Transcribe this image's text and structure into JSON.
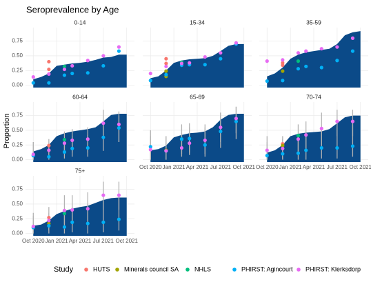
{
  "chart_data": {
    "type": "area",
    "title": "Seroprevalence by Age",
    "y_label": "Proportion",
    "legend_title": "Study",
    "area_color": "#0b4a88",
    "grid": true,
    "xlim": [
      "2020-09",
      "2021-11"
    ],
    "xticks": [
      {
        "value": "2020-10",
        "label": "Oct 2020"
      },
      {
        "value": "2021-01",
        "label": "Jan 2021"
      },
      {
        "value": "2021-04",
        "label": "Apr 2021"
      },
      {
        "value": "2021-07",
        "label": "Jul 2021"
      },
      {
        "value": "2021-10",
        "label": "Oct 2021"
      }
    ],
    "ylim": [
      -0.04,
      0.98
    ],
    "yticks": [
      {
        "value": 0,
        "label": "0.00"
      },
      {
        "value": 0.25,
        "label": "0.25"
      },
      {
        "value": 0.5,
        "label": "0.50"
      },
      {
        "value": 0.75,
        "label": "0.75"
      }
    ],
    "series": [
      {
        "name": "HUTS",
        "color": "#f8766d"
      },
      {
        "name": "Minerals council SA",
        "color": "#a3a500"
      },
      {
        "name": "NHLS",
        "color": "#00bf7d"
      },
      {
        "name": "PHIRST: Agincourt",
        "color": "#00b0f6"
      },
      {
        "name": "PHIRST: Klerksdorp",
        "color": "#e76bf3"
      }
    ],
    "panels": [
      {
        "title": "0-14",
        "area": {
          "x": [
            "2020-10",
            "2020-11",
            "2020-12",
            "2021-01",
            "2021-02",
            "2021-03",
            "2021-04",
            "2021-05",
            "2021-06",
            "2021-07",
            "2021-08",
            "2021-09",
            "2021-10"
          ],
          "values": [
            0.1,
            0.14,
            0.2,
            0.33,
            0.35,
            0.37,
            0.38,
            0.4,
            0.43,
            0.47,
            0.48,
            0.52,
            0.52
          ]
        },
        "points": [
          {
            "x": [
              "2020-12",
              "2020-12"
            ],
            "values": [
              0.4,
              0.27
            ]
          },
          {
            "x": [],
            "values": []
          },
          {
            "x": [
              "2021-02"
            ],
            "values": [
              0.32
            ]
          },
          {
            "x": [
              "2020-10",
              "2020-12",
              "2021-02",
              "2021-03",
              "2021-05",
              "2021-07",
              "2021-09"
            ],
            "values": [
              0.04,
              0.04,
              0.17,
              0.2,
              0.21,
              0.33,
              0.58
            ]
          },
          {
            "x": [
              "2020-10",
              "2020-12",
              "2021-02",
              "2021-03",
              "2021-05",
              "2021-07",
              "2021-09"
            ],
            "values": [
              0.14,
              0.19,
              0.27,
              0.33,
              0.42,
              0.5,
              0.65
            ]
          }
        ]
      },
      {
        "title": "15-34",
        "area": {
          "x": [
            "2020-10",
            "2020-11",
            "2020-12",
            "2021-01",
            "2021-02",
            "2021-03",
            "2021-04",
            "2021-05",
            "2021-06",
            "2021-07",
            "2021-08",
            "2021-09",
            "2021-10"
          ],
          "values": [
            0.12,
            0.15,
            0.25,
            0.38,
            0.42,
            0.44,
            0.45,
            0.46,
            0.5,
            0.58,
            0.67,
            0.7,
            0.7
          ]
        },
        "points": [
          {
            "x": [
              "2020-12",
              "2020-12"
            ],
            "values": [
              0.45,
              0.37
            ]
          },
          {
            "x": [
              "2020-12",
              "2020-12"
            ],
            "values": [
              0.15,
              0.24
            ]
          },
          {
            "x": [
              "2021-02"
            ],
            "values": [
              0.39
            ]
          },
          {
            "x": [
              "2020-10",
              "2020-12",
              "2021-02",
              "2021-03",
              "2021-05",
              "2021-07",
              "2021-09"
            ],
            "values": [
              0.08,
              0.18,
              0.34,
              0.35,
              0.35,
              0.45,
              0.7
            ]
          },
          {
            "x": [
              "2020-10",
              "2020-12",
              "2021-02",
              "2021-03",
              "2021-05",
              "2021-07",
              "2021-09"
            ],
            "values": [
              0.2,
              0.32,
              0.37,
              0.38,
              0.48,
              0.55,
              0.72
            ]
          }
        ]
      },
      {
        "title": "35-59",
        "area": {
          "x": [
            "2020-10",
            "2020-11",
            "2020-12",
            "2021-01",
            "2021-02",
            "2021-03",
            "2021-04",
            "2021-05",
            "2021-06",
            "2021-07",
            "2021-08",
            "2021-09",
            "2021-10"
          ],
          "values": [
            0.15,
            0.2,
            0.3,
            0.45,
            0.52,
            0.56,
            0.58,
            0.6,
            0.62,
            0.7,
            0.85,
            0.9,
            0.92
          ]
        },
        "points": [
          {
            "x": [
              "2020-12",
              "2020-12"
            ],
            "values": [
              0.38,
              0.34
            ]
          },
          {
            "x": [
              "2020-12"
            ],
            "values": [
              0.24
            ]
          },
          {
            "x": [
              "2021-02"
            ],
            "values": [
              0.41
            ]
          },
          {
            "x": [
              "2020-10",
              "2020-12",
              "2021-02",
              "2021-03",
              "2021-05",
              "2021-07",
              "2021-09"
            ],
            "values": [
              0.07,
              0.08,
              0.28,
              0.32,
              0.3,
              0.42,
              0.58
            ]
          },
          {
            "x": [
              "2020-10",
              "2020-12",
              "2021-02",
              "2021-03",
              "2021-05",
              "2021-07",
              "2021-09"
            ],
            "values": [
              0.41,
              0.43,
              0.55,
              0.58,
              0.62,
              0.65,
              0.8
            ]
          }
        ]
      },
      {
        "title": "60-64",
        "area": {
          "x": [
            "2020-10",
            "2020-11",
            "2020-12",
            "2021-01",
            "2021-02",
            "2021-03",
            "2021-04",
            "2021-05",
            "2021-06",
            "2021-07",
            "2021-08",
            "2021-09",
            "2021-10"
          ],
          "values": [
            0.14,
            0.18,
            0.25,
            0.4,
            0.45,
            0.48,
            0.5,
            0.52,
            0.55,
            0.65,
            0.76,
            0.78,
            0.78
          ]
        },
        "points": [
          {
            "x": [
              "2020-12"
            ],
            "values": [
              0.24
            ]
          },
          {
            "x": [
              "2020-12"
            ],
            "values": [
              0.16
            ]
          },
          {
            "x": [
              "2021-02"
            ],
            "values": [
              0.34
            ]
          },
          {
            "x": [
              "2020-10",
              "2020-12",
              "2021-02",
              "2021-03",
              "2021-05",
              "2021-07",
              "2021-09"
            ],
            "values": [
              0.07,
              0.05,
              0.13,
              0.19,
              0.2,
              0.38,
              0.54
            ],
            "lower": [
              0,
              0,
              0.02,
              0.05,
              0.05,
              0.15,
              0.3
            ],
            "upper": [
              0.3,
              0.2,
              0.35,
              0.4,
              0.42,
              0.65,
              0.75
            ]
          },
          {
            "x": [
              "2020-10",
              "2020-12",
              "2021-02",
              "2021-03",
              "2021-05",
              "2021-07",
              "2021-09"
            ],
            "values": [
              0.09,
              0.16,
              0.28,
              0.33,
              0.35,
              0.62,
              0.6
            ],
            "lower": [
              0,
              0.02,
              0.1,
              0.12,
              0.12,
              0.35,
              0.3
            ],
            "upper": [
              0.3,
              0.35,
              0.48,
              0.52,
              0.55,
              0.85,
              0.82
            ]
          }
        ]
      },
      {
        "title": "65-69",
        "area": {
          "x": [
            "2020-10",
            "2020-11",
            "2020-12",
            "2021-01",
            "2021-02",
            "2021-03",
            "2021-04",
            "2021-05",
            "2021-06",
            "2021-07",
            "2021-08",
            "2021-09",
            "2021-10"
          ],
          "values": [
            0.16,
            0.18,
            0.24,
            0.38,
            0.42,
            0.45,
            0.46,
            0.48,
            0.55,
            0.68,
            0.76,
            0.78,
            0.78
          ]
        },
        "points": [
          {
            "x": [
              "2020-12"
            ],
            "values": [
              0.15
            ]
          },
          {
            "x": [
              "2020-12"
            ],
            "values": [
              0.16
            ]
          },
          {
            "x": [
              "2021-02"
            ],
            "values": [
              0.35
            ]
          },
          {
            "x": [
              "2020-10",
              "2020-12",
              "2021-02",
              "2021-03",
              "2021-05",
              "2021-07",
              "2021-09"
            ],
            "values": [
              0.22,
              0.15,
              0.35,
              0.36,
              0.25,
              0.48,
              0.65
            ],
            "lower": [
              0,
              0,
              0.1,
              0.12,
              0.05,
              0.2,
              0.35
            ],
            "upper": [
              0.5,
              0.4,
              0.6,
              0.62,
              0.55,
              0.8,
              0.9
            ]
          },
          {
            "x": [
              "2020-10",
              "2020-12",
              "2021-02",
              "2021-03",
              "2021-05",
              "2021-07",
              "2021-09"
            ],
            "values": [
              0.17,
              0.15,
              0.2,
              0.28,
              0.33,
              0.55,
              0.7
            ],
            "lower": [
              0,
              0,
              0.05,
              0.08,
              0.1,
              0.3,
              0.45
            ],
            "upper": [
              0.4,
              0.4,
              0.45,
              0.55,
              0.6,
              0.8,
              0.9
            ]
          }
        ]
      },
      {
        "title": "70-74",
        "area": {
          "x": [
            "2020-10",
            "2020-11",
            "2020-12",
            "2021-01",
            "2021-02",
            "2021-03",
            "2021-04",
            "2021-05",
            "2021-06",
            "2021-07",
            "2021-08",
            "2021-09",
            "2021-10"
          ],
          "values": [
            0.12,
            0.16,
            0.25,
            0.4,
            0.44,
            0.46,
            0.47,
            0.48,
            0.52,
            0.62,
            0.72,
            0.75,
            0.75
          ]
        },
        "points": [
          {
            "x": [
              "2020-12"
            ],
            "values": [
              0.27
            ]
          },
          {
            "x": [
              "2020-12"
            ],
            "values": [
              0.24
            ]
          },
          {
            "x": [
              "2021-02"
            ],
            "values": [
              0.41
            ]
          },
          {
            "x": [
              "2020-10",
              "2020-12",
              "2021-02",
              "2021-03",
              "2021-05",
              "2021-07",
              "2021-09"
            ],
            "values": [
              0.07,
              0.1,
              0.11,
              0.16,
              0.2,
              0.2,
              0.23
            ],
            "lower": [
              0,
              0,
              0,
              0,
              0.02,
              0.02,
              0.05
            ],
            "upper": [
              0.3,
              0.35,
              0.35,
              0.45,
              0.5,
              0.55,
              0.6
            ]
          },
          {
            "x": [
              "2020-10",
              "2020-12",
              "2021-02",
              "2021-03",
              "2021-05",
              "2021-07",
              "2021-09"
            ],
            "values": [
              0.16,
              0.19,
              0.35,
              0.42,
              0.53,
              0.65,
              0.65
            ],
            "lower": [
              0,
              0.02,
              0.12,
              0.15,
              0.25,
              0.4,
              0.4
            ],
            "upper": [
              0.4,
              0.4,
              0.6,
              0.65,
              0.8,
              0.85,
              0.85
            ]
          }
        ]
      },
      {
        "title": "75+",
        "area": {
          "x": [
            "2020-10",
            "2020-11",
            "2020-12",
            "2021-01",
            "2021-02",
            "2021-03",
            "2021-04",
            "2021-05",
            "2021-06",
            "2021-07",
            "2021-08",
            "2021-09",
            "2021-10"
          ],
          "values": [
            0.13,
            0.15,
            0.22,
            0.33,
            0.38,
            0.42,
            0.45,
            0.47,
            0.52,
            0.57,
            0.6,
            0.61,
            0.61
          ]
        },
        "points": [
          {
            "x": [
              "2020-12"
            ],
            "values": [
              0.27
            ]
          },
          {
            "x": [
              "2020-12"
            ],
            "values": [
              0.17
            ]
          },
          {
            "x": [
              "2021-02"
            ],
            "values": [
              0.34
            ]
          },
          {
            "x": [
              "2020-10",
              "2020-12",
              "2021-02",
              "2021-03",
              "2021-05",
              "2021-07",
              "2021-09"
            ],
            "values": [
              0.1,
              0.13,
              0.11,
              0.19,
              0.17,
              0.19,
              0.24
            ],
            "lower": [
              0,
              0,
              0,
              0.02,
              0,
              0.02,
              0.05
            ],
            "upper": [
              0.3,
              0.35,
              0.4,
              0.45,
              0.5,
              0.55,
              0.6
            ]
          },
          {
            "x": [
              "2020-10",
              "2020-12",
              "2021-02",
              "2021-03",
              "2021-05",
              "2021-07",
              "2021-09"
            ],
            "values": [
              0.12,
              0.22,
              0.39,
              0.4,
              0.42,
              0.65,
              0.65
            ],
            "lower": [
              0,
              0.05,
              0.15,
              0.15,
              0.18,
              0.4,
              0.4
            ],
            "upper": [
              0.35,
              0.45,
              0.65,
              0.65,
              0.7,
              0.88,
              0.88
            ]
          }
        ]
      }
    ]
  }
}
